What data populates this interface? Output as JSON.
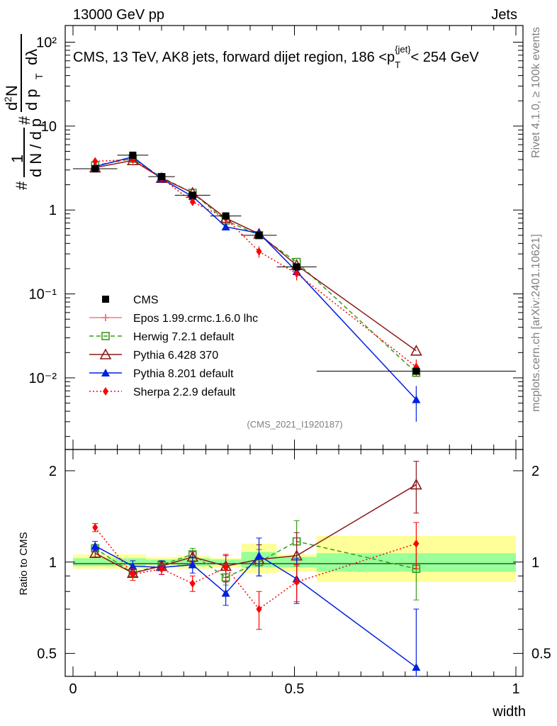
{
  "header": {
    "left": "13000 GeV pp",
    "right": "Jets"
  },
  "side_labels": {
    "rivet": "Rivet 4.1.0, ≥ 100k events",
    "mcplots": "mcplots.cern.ch [arXiv:2401.10621]"
  },
  "colors": {
    "cms": "#000000",
    "epos": "#f08080",
    "herwig": "#3a9a1a",
    "pythia6": "#8b1a1a",
    "pythia8": "#0020e0",
    "sherpa": "#ff0000",
    "band_inner": "#99ff99",
    "band_outer": "#ffff99"
  },
  "chart_data": [
    {
      "type": "scatter",
      "title": "CMS, 13 TeV, AK8 jets, forward dijet region, 186 <p_T^{jet}< 254 GeV",
      "title_parts": {
        "main": "CMS, 13 TeV, AK8 jets, forward dijet region, 186 <p",
        "sub": "T",
        "sup": "{jet}",
        "end": "< 254 GeV"
      },
      "ylabel": "1/N dN/dp_T d²N/dp_T dλ",
      "ylabel_parts": {
        "one": "1",
        "n": "d N / d p",
        "sub_t": "T",
        "d2n": "d",
        "sup2": "2",
        "n2": "N",
        "dp": "d p",
        "dl": "dλ",
        "hash": "#"
      },
      "yscale": "log",
      "ylim": [
        0.0014,
        130
      ],
      "xlim": [
        -0.02,
        1.02
      ],
      "y_tick_labels": [
        "10⁻²",
        "10⁻¹",
        "1",
        "10",
        "10²"
      ],
      "y_tick_values": [
        0.01,
        0.1,
        1,
        10,
        100
      ],
      "watermark": "(CMS_2021_I1920187)",
      "x": [
        0.05,
        0.135,
        0.2,
        0.27,
        0.345,
        0.42,
        0.505,
        0.775
      ],
      "x_err": [
        0.05,
        0.035,
        0.03,
        0.04,
        0.035,
        0.04,
        0.045,
        0.225
      ],
      "series": [
        {
          "name": "CMS",
          "key": "cms",
          "marker": "square-filled",
          "line": "none",
          "values": [
            3.1,
            4.5,
            2.5,
            1.5,
            0.85,
            0.5,
            0.21,
            0.012
          ]
        },
        {
          "name": "Epos 1.99.crmc.1.6.0 lhc",
          "key": "epos",
          "marker": "cross",
          "line": "solid",
          "values": [
            null,
            null,
            null,
            null,
            null,
            null,
            null,
            null
          ]
        },
        {
          "name": "Herwig 7.2.1 default",
          "key": "herwig",
          "marker": "square-open",
          "line": "dashed",
          "values": [
            3.4,
            4.1,
            2.45,
            1.6,
            0.75,
            0.5,
            0.24,
            0.0115
          ]
        },
        {
          "name": "Pythia 6.428 370",
          "key": "pythia6",
          "marker": "triangle-open",
          "line": "solid",
          "values": [
            3.2,
            3.9,
            2.4,
            1.6,
            0.8,
            0.52,
            0.22,
            0.021
          ]
        },
        {
          "name": "Pythia 8.201 default",
          "key": "pythia8",
          "marker": "triangle-filled",
          "line": "solid",
          "values": [
            3.3,
            4.3,
            2.35,
            1.45,
            0.63,
            0.53,
            0.185,
            0.0055
          ],
          "errors": [
            0.1,
            0.15,
            0.1,
            0.08,
            0.05,
            0.06,
            0.03,
            0.0025
          ]
        },
        {
          "name": "Sherpa 2.2.9 default",
          "key": "sherpa",
          "marker": "diamond-filled",
          "line": "dotted",
          "values": [
            3.8,
            4.0,
            2.4,
            1.25,
            0.8,
            0.32,
            0.175,
            0.0135
          ],
          "errors": [
            0.1,
            0.12,
            0.08,
            0.08,
            0.06,
            0.05,
            0.03,
            0.003
          ]
        }
      ]
    },
    {
      "type": "scatter",
      "ylabel": "Ratio to CMS",
      "xlabel": "width",
      "yscale": "log",
      "ylim": [
        0.42,
        2.35
      ],
      "xlim": [
        -0.02,
        1.02
      ],
      "y_tick_labels": [
        "0.5",
        "1",
        "2"
      ],
      "y_tick_values": [
        0.5,
        1,
        2
      ],
      "x_tick_labels": [
        "0",
        "0.5",
        "1"
      ],
      "x_tick_values": [
        0,
        0.5,
        1
      ],
      "bands": {
        "edges": [
          0,
          0.165,
          0.235,
          0.31,
          0.38,
          0.46,
          0.55,
          1.0
        ],
        "inner": [
          [
            0.97,
            1.03
          ],
          [
            0.98,
            1.02
          ],
          [
            0.97,
            1.03
          ],
          [
            0.98,
            1.02
          ],
          [
            0.96,
            1.08
          ],
          [
            0.96,
            1.04
          ],
          [
            0.93,
            1.07
          ]
        ],
        "outer": [
          [
            0.95,
            1.06
          ],
          [
            0.97,
            1.04
          ],
          [
            0.95,
            1.05
          ],
          [
            0.96,
            1.03
          ],
          [
            0.92,
            1.15
          ],
          [
            0.93,
            1.06
          ],
          [
            0.86,
            1.22
          ]
        ]
      },
      "series": [
        {
          "key": "herwig",
          "values": [
            1.11,
            0.92,
            0.98,
            1.06,
            0.89,
            1.0,
            1.17,
            0.95
          ],
          "errors": [
            0.03,
            0.03,
            0.03,
            0.05,
            0.05,
            0.1,
            0.2,
            0.2
          ]
        },
        {
          "key": "pythia6",
          "values": [
            1.07,
            0.92,
            0.97,
            1.04,
            0.97,
            1.02,
            1.05,
            1.8
          ],
          "errors": [
            0.03,
            0.03,
            0.03,
            0.04,
            0.08,
            0.12,
            0.2,
            0.35
          ]
        },
        {
          "key": "pythia8",
          "values": [
            1.13,
            0.97,
            0.96,
            0.98,
            0.79,
            1.05,
            0.88,
            0.45
          ],
          "errors": [
            0.04,
            0.04,
            0.05,
            0.06,
            0.07,
            0.15,
            0.15,
            0.25
          ]
        },
        {
          "key": "sherpa",
          "values": [
            1.3,
            0.91,
            0.95,
            0.85,
            0.96,
            0.7,
            0.86,
            1.15
          ],
          "errors": [
            0.04,
            0.04,
            0.04,
            0.05,
            0.1,
            0.1,
            0.12,
            0.2
          ]
        }
      ]
    }
  ]
}
